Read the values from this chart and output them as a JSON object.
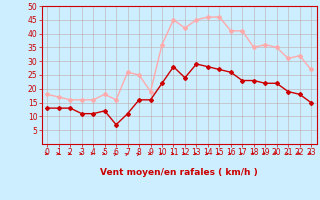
{
  "x": [
    0,
    1,
    2,
    3,
    4,
    5,
    6,
    7,
    8,
    9,
    10,
    11,
    12,
    13,
    14,
    15,
    16,
    17,
    18,
    19,
    20,
    21,
    22,
    23
  ],
  "vent_moyen": [
    13,
    13,
    13,
    11,
    11,
    12,
    7,
    11,
    16,
    16,
    22,
    28,
    24,
    29,
    28,
    27,
    26,
    23,
    23,
    22,
    22,
    19,
    18,
    15
  ],
  "rafales": [
    18,
    17,
    16,
    16,
    16,
    18,
    16,
    26,
    25,
    19,
    36,
    45,
    42,
    45,
    46,
    46,
    41,
    41,
    35,
    36,
    35,
    31,
    32,
    27
  ],
  "xlabel": "Vent moyen/en rafales ( km/h )",
  "ylim": [
    0,
    50
  ],
  "yticks": [
    5,
    10,
    15,
    20,
    25,
    30,
    35,
    40,
    45,
    50
  ],
  "xticks": [
    0,
    1,
    2,
    3,
    4,
    5,
    6,
    7,
    8,
    9,
    10,
    11,
    12,
    13,
    14,
    15,
    16,
    17,
    18,
    19,
    20,
    21,
    22,
    23
  ],
  "color_moyen": "#cc0000",
  "color_rafales": "#ffaaaa",
  "bg_color": "#cceeff",
  "grid_color": "#bb9999",
  "marker": "D",
  "marker_size": 2,
  "line_width": 1.0,
  "arrow_angles": [
    0,
    0,
    0,
    0,
    0,
    0,
    45,
    45,
    45,
    0,
    0,
    0,
    0,
    0,
    0,
    0,
    0,
    0,
    315,
    315,
    315,
    0,
    315,
    315
  ]
}
